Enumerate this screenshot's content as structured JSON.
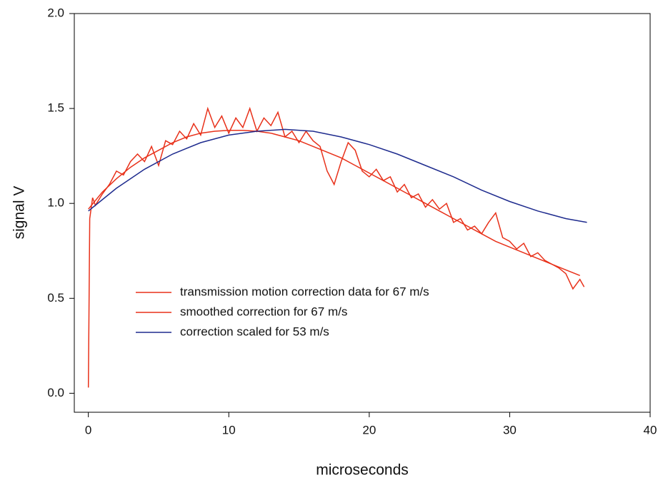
{
  "chart_data": {
    "type": "line",
    "xlabel": "microseconds",
    "ylabel": "signal V",
    "xlim": [
      -1,
      40
    ],
    "ylim": [
      -0.1,
      2.0
    ],
    "xticks": [
      0,
      10,
      20,
      30,
      40
    ],
    "yticks": [
      {
        "value": 0,
        "label": "0.0"
      },
      0.5,
      {
        "value": 1,
        "label": "1.0"
      },
      1.5,
      {
        "value": 2,
        "label": "2.0"
      }
    ],
    "grid": false,
    "legend": "lower left",
    "series": [
      {
        "name": "transmission motion correction data for 67 m/s",
        "color": "#e8311a",
        "x": [
          0,
          0.1,
          0.3,
          0.5,
          1,
          1.5,
          2,
          2.5,
          3,
          3.5,
          4,
          4.5,
          5,
          5.5,
          6,
          6.5,
          7,
          7.5,
          8,
          8.5,
          9,
          9.5,
          10,
          10.5,
          11,
          11.5,
          12,
          12.5,
          13,
          13.5,
          14,
          14.5,
          15,
          15.5,
          16,
          16.5,
          17,
          17.5,
          18,
          18.5,
          19,
          19.5,
          20,
          20.5,
          21,
          21.5,
          22,
          22.5,
          23,
          23.5,
          24,
          24.5,
          25,
          25.5,
          26,
          26.5,
          27,
          27.5,
          28,
          28.5,
          29,
          29.5,
          30,
          30.5,
          31,
          31.5,
          32,
          32.5,
          33,
          33.5,
          34,
          34.5,
          35,
          35.3
        ],
        "values": [
          0.03,
          0.92,
          1.03,
          0.99,
          1.05,
          1.1,
          1.17,
          1.15,
          1.22,
          1.26,
          1.22,
          1.3,
          1.2,
          1.33,
          1.31,
          1.38,
          1.34,
          1.42,
          1.36,
          1.5,
          1.4,
          1.46,
          1.37,
          1.45,
          1.4,
          1.5,
          1.38,
          1.45,
          1.41,
          1.48,
          1.35,
          1.38,
          1.32,
          1.38,
          1.33,
          1.3,
          1.17,
          1.1,
          1.22,
          1.32,
          1.28,
          1.17,
          1.14,
          1.18,
          1.12,
          1.14,
          1.06,
          1.1,
          1.03,
          1.05,
          0.98,
          1.02,
          0.97,
          1.0,
          0.9,
          0.92,
          0.86,
          0.88,
          0.84,
          0.9,
          0.95,
          0.82,
          0.8,
          0.76,
          0.79,
          0.72,
          0.74,
          0.7,
          0.68,
          0.66,
          0.63,
          0.55,
          0.6,
          0.56
        ]
      },
      {
        "name": "smoothed correction for 67 m/s",
        "color": "#e8311a",
        "x": [
          0,
          1,
          2,
          3,
          4,
          5,
          6,
          7,
          8,
          9,
          10,
          11,
          12,
          13,
          14,
          15,
          16,
          17,
          18,
          19,
          20,
          21,
          22,
          23,
          24,
          25,
          26,
          27,
          28,
          29,
          30,
          31,
          32,
          33,
          34,
          35
        ],
        "values": [
          0.97,
          1.06,
          1.13,
          1.19,
          1.24,
          1.28,
          1.32,
          1.35,
          1.37,
          1.38,
          1.385,
          1.385,
          1.38,
          1.37,
          1.35,
          1.33,
          1.3,
          1.27,
          1.24,
          1.2,
          1.16,
          1.12,
          1.08,
          1.04,
          1.0,
          0.96,
          0.92,
          0.88,
          0.84,
          0.8,
          0.77,
          0.74,
          0.71,
          0.68,
          0.65,
          0.62
        ]
      },
      {
        "name": "correction scaled for 53 m/s",
        "color": "#1e2b8e",
        "x": [
          0,
          2,
          4,
          6,
          8,
          10,
          12,
          14,
          16,
          18,
          20,
          22,
          24,
          26,
          28,
          30,
          32,
          34,
          35.5
        ],
        "values": [
          0.96,
          1.08,
          1.18,
          1.26,
          1.32,
          1.36,
          1.38,
          1.39,
          1.38,
          1.35,
          1.31,
          1.26,
          1.2,
          1.14,
          1.07,
          1.01,
          0.96,
          0.92,
          0.9
        ]
      }
    ]
  }
}
